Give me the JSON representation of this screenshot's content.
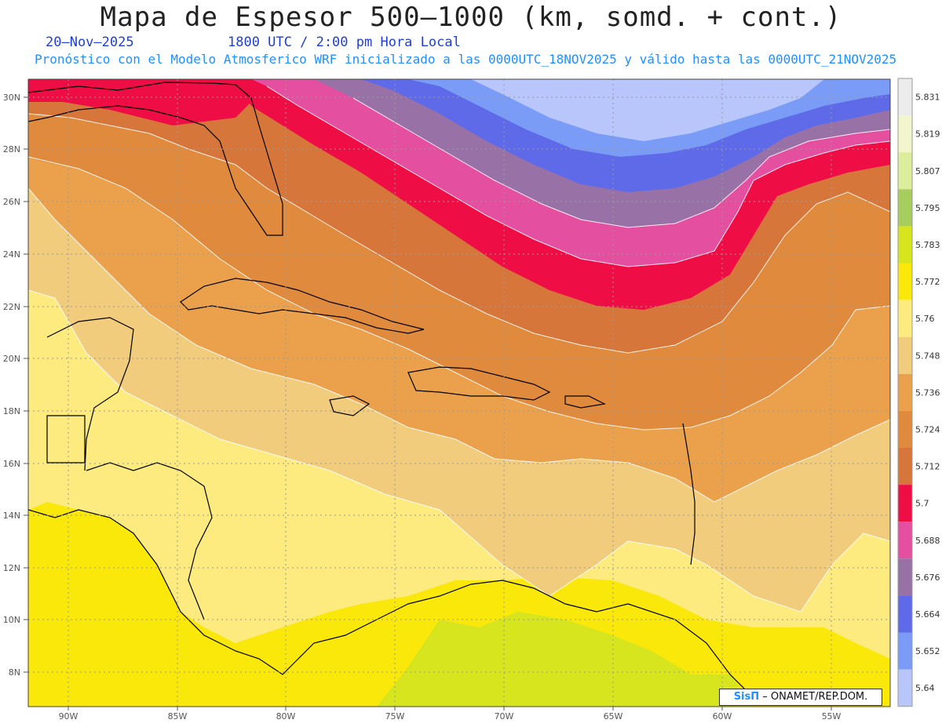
{
  "header": {
    "title": "Mapa de Espesor 500–1000 (km, somd. + cont.)",
    "date": "20–Nov–2025",
    "time": "1800 UTC / 2:00 pm Hora Local",
    "model_line": "Pronóstico con el Modelo Atmosferico WRF inicializado a las 0000UTC_18NOV2025 y válido hasta las  0000UTC_21NOV2025"
  },
  "map": {
    "lat_labels": [
      "30N",
      "28N",
      "26N",
      "24N",
      "22N",
      "20N",
      "18N",
      "16N",
      "14N",
      "12N",
      "10N",
      "8N"
    ],
    "lon_labels": [
      "90W",
      "85W",
      "80W",
      "75W",
      "70W",
      "65W",
      "60W",
      "55W"
    ]
  },
  "colorbar": {
    "labels": [
      "5.831",
      "5.819",
      "5.807",
      "5.795",
      "5.783",
      "5.772",
      "5.76",
      "5.748",
      "5.736",
      "5.724",
      "5.712",
      "5.7",
      "5.688",
      "5.676",
      "5.664",
      "5.652",
      "5.64"
    ],
    "colors": [
      "#ececec",
      "#f3f6cc",
      "#dcee9c",
      "#a6cd5e",
      "#d6e51e",
      "#fae80a",
      "#fdeb80",
      "#f1cc7c",
      "#eba14c",
      "#e08a3e",
      "#d7763a",
      "#ee0d44",
      "#e44fa0",
      "#9871a6",
      "#5f6ae9",
      "#7a9cf6",
      "#b9c6fc"
    ]
  },
  "credit": {
    "brand": "SisΠ",
    "text": "– ONAMET/REP.DOM."
  }
}
